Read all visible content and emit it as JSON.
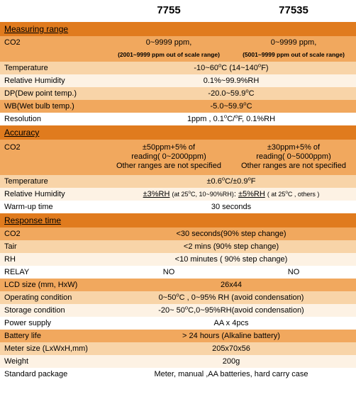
{
  "colors": {
    "dark": "#e07b1e",
    "mid": "#f1a85e",
    "light": "#f8d4a8",
    "pale": "#fdf2e4",
    "white": "#ffffff"
  },
  "header": {
    "col2": "7755",
    "col3": "77535"
  },
  "rows": [
    {
      "type": "section",
      "bg": "dark",
      "label": "Measuring range"
    },
    {
      "type": "two",
      "bg": "mid",
      "label": "CO2",
      "v2": "0~9999 ppm,",
      "v3": "0~9999 ppm,"
    },
    {
      "type": "note",
      "bg": "mid",
      "v2": "(2001~9999 ppm out of scale range)",
      "v3": "(5001~9999 ppm out of scale range)"
    },
    {
      "type": "one",
      "bg": "light",
      "label": "Temperature",
      "v": "-10~60ºC (14~140ºF)"
    },
    {
      "type": "one",
      "bg": "pale",
      "label": "Relative Humidity",
      "v": "0.1%~99.9%RH"
    },
    {
      "type": "one",
      "bg": "light",
      "label": "DP(Dew point temp.)",
      "v": "-20.0~59.9ºC"
    },
    {
      "type": "one",
      "bg": "mid",
      "label": "WB(Wet bulb temp.)",
      "v": "-5.0~59.9ºC"
    },
    {
      "type": "one",
      "bg": "white",
      "label": "Resolution",
      "v": "1ppm  , 0.1ºC/ºF, 0.1%RH"
    },
    {
      "type": "section",
      "bg": "dark",
      "label": "Accuracy"
    },
    {
      "type": "stack2",
      "bg": "mid",
      "label": "CO2",
      "v2a": "±50ppm+5% of",
      "v2b": "reading( 0~2000ppm)",
      "v2c": "Other ranges are not specified",
      "v3a": "±30ppm+5% of",
      "v3b": "reading( 0~5000ppm)",
      "v3c": "Other ranges are not specified"
    },
    {
      "type": "one",
      "bg": "light",
      "label": "Temperature",
      "v": "±0.6ºC/±0.9ºF"
    },
    {
      "type": "rh-acc",
      "bg": "pale",
      "label": "Relative Humidity",
      "a": "±3%RH",
      "anote": "(at 25ºC, 10~90%RH)",
      "sep": ": ",
      "b": "±5%RH",
      "bnote": "( at 25ºC , others )"
    },
    {
      "type": "one",
      "bg": "white",
      "label": "Warm-up time",
      "v": "30 seconds"
    },
    {
      "type": "section",
      "bg": "dark",
      "label": "Response time"
    },
    {
      "type": "one",
      "bg": "mid",
      "label": "CO2",
      "v": "<30 seconds(90% step change)"
    },
    {
      "type": "one",
      "bg": "light",
      "label": "Tair",
      "v": "<2 mins (90% step change)"
    },
    {
      "type": "one",
      "bg": "pale",
      "label": "RH",
      "v": "<10 minutes ( 90% step change)"
    },
    {
      "type": "two",
      "bg": "white",
      "label": "RELAY",
      "v2": "NO",
      "v3": "NO"
    },
    {
      "type": "one",
      "bg": "mid",
      "label": "LCD size (mm, HxW)",
      "v": "26x44"
    },
    {
      "type": "one",
      "bg": "light",
      "label": "Operating condition",
      "v": "0~50ºC , 0~95% RH (avoid condensation)"
    },
    {
      "type": "one",
      "bg": "pale",
      "label": "Storage condition",
      "v": "-20~ 50ºC,0~95%RH(avoid condensation)"
    },
    {
      "type": "one",
      "bg": "white",
      "label": "Power supply",
      "v": "AA x 4pcs"
    },
    {
      "type": "one",
      "bg": "mid",
      "label": "Battery life",
      "v": "> 24 hours (Alkaline battery)"
    },
    {
      "type": "one",
      "bg": "light",
      "label": "Meter size (LxWxH,mm)",
      "v": "205x70x56"
    },
    {
      "type": "one",
      "bg": "pale",
      "label": "Weight",
      "v": "200g"
    },
    {
      "type": "one",
      "bg": "white",
      "label": "Standard package",
      "v": "Meter, manual ,AA batteries, hard carry case"
    }
  ]
}
